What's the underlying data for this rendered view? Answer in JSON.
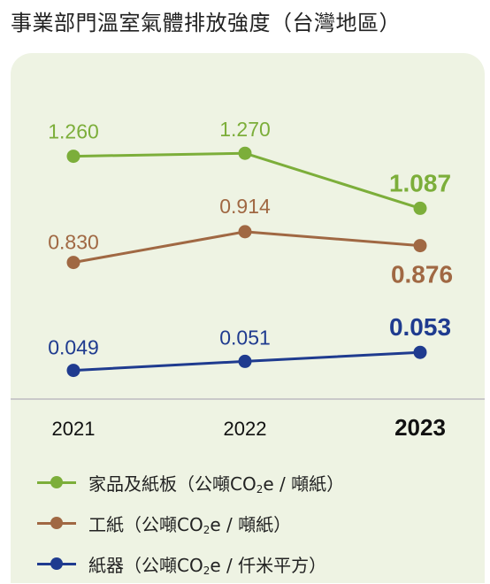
{
  "title": "事業部門溫室氣體排放強度（台灣地區）",
  "colors": {
    "green": "#7cae3a",
    "brown": "#a06843",
    "navy": "#1f3b8f",
    "panel": "#eef3e3"
  },
  "legend": [
    {
      "pre": "家品及紙板（公噸CO",
      "sub": "2",
      "post": "e / 噸紙）",
      "color": "#7cae3a"
    },
    {
      "pre": "工紙（公噸CO",
      "sub": "2",
      "post": "e / 噸紙）",
      "color": "#a06843"
    },
    {
      "pre": "紙器（公噸CO",
      "sub": "2",
      "post": "e / 仟米平方）",
      "color": "#1f3b8f"
    }
  ],
  "chart_data": {
    "type": "line",
    "categories": [
      "2021",
      "2022",
      "2023"
    ],
    "series": [
      {
        "name": "家品及紙板（公噸CO2e / 噸紙）",
        "values": [
          1.26,
          1.27,
          1.087
        ],
        "labels": [
          "1.260",
          "1.270",
          "1.087"
        ],
        "color": "#7cae3a"
      },
      {
        "name": "工紙（公噸CO2e / 噸紙）",
        "values": [
          0.83,
          0.914,
          0.876
        ],
        "labels": [
          "0.830",
          "0.914",
          "0.876"
        ],
        "color": "#a06843"
      },
      {
        "name": "紙器（公噸CO2e / 仟米平方）",
        "values": [
          0.049,
          0.051,
          0.053
        ],
        "labels": [
          "0.049",
          "0.051",
          "0.053"
        ],
        "color": "#1f3b8f"
      }
    ],
    "highlight_category": "2023"
  }
}
